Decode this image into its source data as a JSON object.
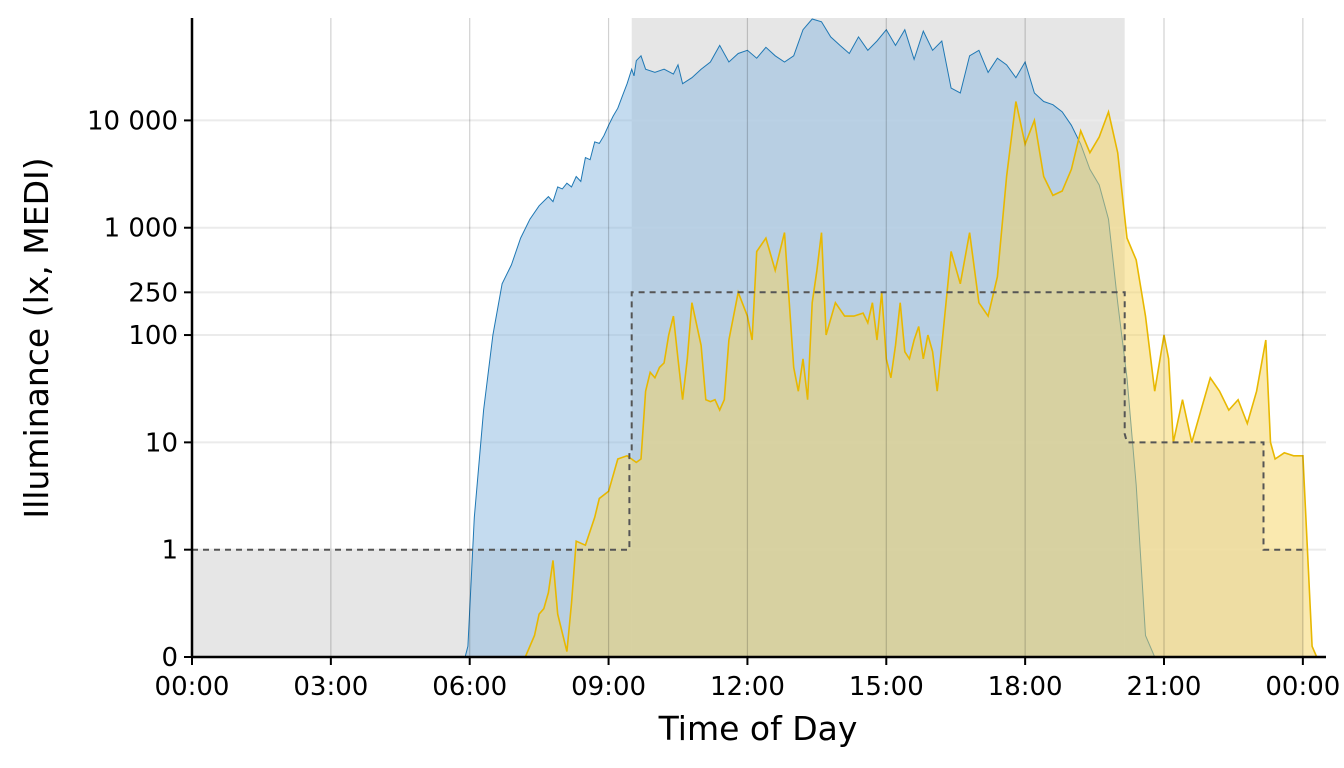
{
  "chart_data": {
    "type": "area",
    "title": "",
    "xlabel": "Time of Day",
    "ylabel": "Illuminance (lx, MEDI)",
    "x_unit": "hours",
    "xlim": [
      0,
      24.5
    ],
    "x_ticks": [
      {
        "value": 0,
        "label": "00:00"
      },
      {
        "value": 3,
        "label": "03:00"
      },
      {
        "value": 6,
        "label": "06:00"
      },
      {
        "value": 9,
        "label": "09:00"
      },
      {
        "value": 12,
        "label": "12:00"
      },
      {
        "value": 15,
        "label": "15:00"
      },
      {
        "value": 18,
        "label": "18:00"
      },
      {
        "value": 21,
        "label": "21:00"
      },
      {
        "value": 24,
        "label": "00:00"
      }
    ],
    "y_scale": "symlog",
    "ylim": [
      0,
      90000
    ],
    "y_ticks": [
      {
        "value": 0,
        "label": "0"
      },
      {
        "value": 1,
        "label": "1"
      },
      {
        "value": 10,
        "label": "10"
      },
      {
        "value": 100,
        "label": "100"
      },
      {
        "value": 250,
        "label": "250"
      },
      {
        "value": 1000,
        "label": "1 000"
      },
      {
        "value": 10000,
        "label": "10 000"
      }
    ],
    "grid": true,
    "legend": "none",
    "background_bands": [
      {
        "x_start": 0,
        "x_end": 9.5,
        "y_top": 1
      },
      {
        "x_start": 9.5,
        "x_end": 20.15,
        "y_top": 90000
      },
      {
        "x_start": 20.15,
        "x_end": 23.15,
        "y_top": 10
      },
      {
        "x_start": 23.15,
        "x_end": 24,
        "y_top": 1
      }
    ],
    "threshold_steps": [
      {
        "x": 0,
        "y": 1
      },
      {
        "x": 9.45,
        "y": 1
      },
      {
        "x": 9.45,
        "y": 8
      },
      {
        "x": 9.5,
        "y": 8
      },
      {
        "x": 9.5,
        "y": 250
      },
      {
        "x": 20.15,
        "y": 250
      },
      {
        "x": 20.15,
        "y": 12
      },
      {
        "x": 20.2,
        "y": 10
      },
      {
        "x": 23.15,
        "y": 10
      },
      {
        "x": 23.15,
        "y": 1
      },
      {
        "x": 24,
        "y": 1
      }
    ],
    "series": [
      {
        "points": [
          [
            5.9,
            0
          ],
          [
            5.96,
            0.1
          ],
          [
            6.1,
            2
          ],
          [
            6.3,
            20
          ],
          [
            6.5,
            100
          ],
          [
            6.7,
            300
          ],
          [
            6.9,
            450
          ],
          [
            7.1,
            800
          ],
          [
            7.3,
            1200
          ],
          [
            7.5,
            1600
          ],
          [
            7.7,
            1950
          ],
          [
            7.8,
            1750
          ],
          [
            7.9,
            2400
          ],
          [
            8.0,
            2300
          ],
          [
            8.1,
            2600
          ],
          [
            8.2,
            2400
          ],
          [
            8.3,
            3000
          ],
          [
            8.4,
            2700
          ],
          [
            8.5,
            4500
          ],
          [
            8.6,
            4300
          ],
          [
            8.7,
            6300
          ],
          [
            8.8,
            6100
          ],
          [
            8.9,
            7200
          ],
          [
            9.0,
            9000
          ],
          [
            9.1,
            11000
          ],
          [
            9.2,
            13000
          ],
          [
            9.3,
            17000
          ],
          [
            9.4,
            22000
          ],
          [
            9.5,
            30000
          ],
          [
            9.55,
            26000
          ],
          [
            9.6,
            36000
          ],
          [
            9.7,
            40000
          ],
          [
            9.8,
            30000
          ],
          [
            10.0,
            28000
          ],
          [
            10.2,
            30000
          ],
          [
            10.4,
            27000
          ],
          [
            10.5,
            33000
          ],
          [
            10.6,
            22000
          ],
          [
            10.8,
            25000
          ],
          [
            11.0,
            30000
          ],
          [
            11.2,
            35000
          ],
          [
            11.4,
            50000
          ],
          [
            11.6,
            35000
          ],
          [
            11.8,
            42000
          ],
          [
            12.0,
            45000
          ],
          [
            12.2,
            38000
          ],
          [
            12.4,
            48000
          ],
          [
            12.6,
            40000
          ],
          [
            12.8,
            35000
          ],
          [
            13.0,
            40000
          ],
          [
            13.2,
            70000
          ],
          [
            13.4,
            88000
          ],
          [
            13.6,
            83000
          ],
          [
            13.8,
            60000
          ],
          [
            14.0,
            50000
          ],
          [
            14.2,
            42000
          ],
          [
            14.4,
            60000
          ],
          [
            14.6,
            45000
          ],
          [
            14.8,
            55000
          ],
          [
            15.0,
            70000
          ],
          [
            15.2,
            50000
          ],
          [
            15.4,
            70000
          ],
          [
            15.6,
            37000
          ],
          [
            15.8,
            68000
          ],
          [
            16.0,
            45000
          ],
          [
            16.2,
            55000
          ],
          [
            16.4,
            20000
          ],
          [
            16.6,
            18000
          ],
          [
            16.8,
            40000
          ],
          [
            17.0,
            45000
          ],
          [
            17.2,
            28000
          ],
          [
            17.4,
            38000
          ],
          [
            17.6,
            33000
          ],
          [
            17.8,
            25000
          ],
          [
            18.0,
            35000
          ],
          [
            18.2,
            18000
          ],
          [
            18.4,
            15000
          ],
          [
            18.6,
            14000
          ],
          [
            18.8,
            12000
          ],
          [
            19.0,
            9000
          ],
          [
            19.2,
            6000
          ],
          [
            19.4,
            3500
          ],
          [
            19.6,
            2500
          ],
          [
            19.8,
            1200
          ],
          [
            20.0,
            200
          ],
          [
            20.2,
            40
          ],
          [
            20.4,
            4
          ],
          [
            20.6,
            0.2
          ],
          [
            20.8,
            0
          ]
        ],
        "color": "#1f78b4",
        "fill": "#8ab8e0"
      },
      {
        "points": [
          [
            7.2,
            0
          ],
          [
            7.4,
            0.2
          ],
          [
            7.5,
            0.4
          ],
          [
            7.6,
            0.45
          ],
          [
            7.7,
            0.6
          ],
          [
            7.8,
            0.9
          ],
          [
            7.9,
            0.4
          ],
          [
            8.1,
            0.05
          ],
          [
            8.2,
            0.5
          ],
          [
            8.3,
            1.2
          ],
          [
            8.5,
            1.1
          ],
          [
            8.7,
            2
          ],
          [
            8.8,
            3
          ],
          [
            9.0,
            3.5
          ],
          [
            9.2,
            7
          ],
          [
            9.4,
            7.5
          ],
          [
            9.6,
            6.5
          ],
          [
            9.7,
            7
          ],
          [
            9.8,
            30
          ],
          [
            9.9,
            45
          ],
          [
            10.0,
            40
          ],
          [
            10.1,
            50
          ],
          [
            10.2,
            55
          ],
          [
            10.3,
            100
          ],
          [
            10.4,
            150
          ],
          [
            10.5,
            60
          ],
          [
            10.6,
            25
          ],
          [
            10.7,
            60
          ],
          [
            10.8,
            200
          ],
          [
            11.0,
            80
          ],
          [
            11.1,
            25
          ],
          [
            11.2,
            24
          ],
          [
            11.3,
            25
          ],
          [
            11.4,
            20
          ],
          [
            11.5,
            25
          ],
          [
            11.6,
            90
          ],
          [
            11.8,
            250
          ],
          [
            12.0,
            150
          ],
          [
            12.1,
            90
          ],
          [
            12.2,
            600
          ],
          [
            12.4,
            800
          ],
          [
            12.6,
            400
          ],
          [
            12.8,
            900
          ],
          [
            13.0,
            50
          ],
          [
            13.1,
            30
          ],
          [
            13.2,
            60
          ],
          [
            13.3,
            25
          ],
          [
            13.4,
            200
          ],
          [
            13.5,
            400
          ],
          [
            13.6,
            900
          ],
          [
            13.7,
            100
          ],
          [
            13.9,
            200
          ],
          [
            14.1,
            150
          ],
          [
            14.3,
            150
          ],
          [
            14.5,
            160
          ],
          [
            14.6,
            130
          ],
          [
            14.7,
            200
          ],
          [
            14.8,
            90
          ],
          [
            14.9,
            250
          ],
          [
            15.0,
            60
          ],
          [
            15.1,
            40
          ],
          [
            15.2,
            80
          ],
          [
            15.3,
            200
          ],
          [
            15.4,
            70
          ],
          [
            15.5,
            60
          ],
          [
            15.6,
            90
          ],
          [
            15.7,
            120
          ],
          [
            15.8,
            60
          ],
          [
            15.9,
            100
          ],
          [
            16.0,
            70
          ],
          [
            16.1,
            30
          ],
          [
            16.2,
            80
          ],
          [
            16.4,
            600
          ],
          [
            16.6,
            300
          ],
          [
            16.8,
            900
          ],
          [
            17.0,
            200
          ],
          [
            17.2,
            150
          ],
          [
            17.4,
            350
          ],
          [
            17.6,
            3000
          ],
          [
            17.8,
            15000
          ],
          [
            18.0,
            6000
          ],
          [
            18.2,
            10000
          ],
          [
            18.4,
            3000
          ],
          [
            18.6,
            2000
          ],
          [
            18.8,
            2200
          ],
          [
            19.0,
            3500
          ],
          [
            19.2,
            8000
          ],
          [
            19.4,
            5000
          ],
          [
            19.6,
            7000
          ],
          [
            19.8,
            12000
          ],
          [
            20.0,
            5000
          ],
          [
            20.2,
            800
          ],
          [
            20.4,
            500
          ],
          [
            20.6,
            150
          ],
          [
            20.8,
            30
          ],
          [
            21.0,
            100
          ],
          [
            21.1,
            60
          ],
          [
            21.2,
            10
          ],
          [
            21.4,
            25
          ],
          [
            21.6,
            10
          ],
          [
            21.8,
            20
          ],
          [
            22.0,
            40
          ],
          [
            22.2,
            30
          ],
          [
            22.4,
            20
          ],
          [
            22.6,
            25
          ],
          [
            22.8,
            15
          ],
          [
            23.0,
            30
          ],
          [
            23.2,
            90
          ],
          [
            23.3,
            10
          ],
          [
            23.4,
            7
          ],
          [
            23.6,
            8
          ],
          [
            23.8,
            7.5
          ],
          [
            24.0,
            7.5
          ],
          [
            24.2,
            0.1
          ],
          [
            24.3,
            0
          ]
        ],
        "color": "#e8b800",
        "fill": "#f5d460"
      }
    ]
  }
}
